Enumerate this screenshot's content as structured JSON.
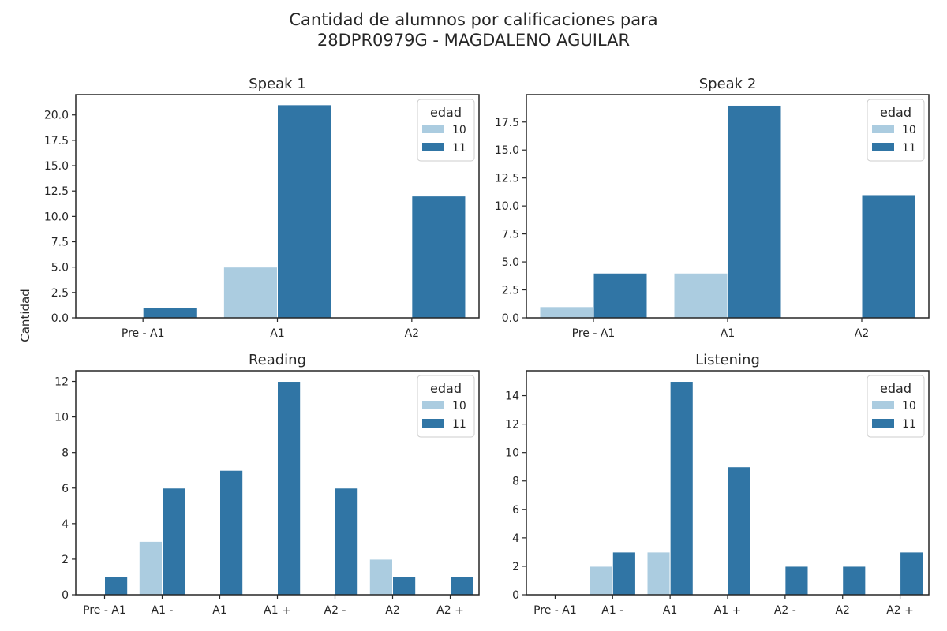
{
  "title": "Cantidad de alumnos por calificaciones para\n28DPR0979G - MAGDALENO AGUILAR",
  "title_lines": [
    "Cantidad de alumnos por calificaciones para",
    "28DPR0979G - MAGDALENO AGUILAR"
  ],
  "ylabel": "Cantidad",
  "colors": {
    "10": "#abcce0",
    "11": "#3075a5",
    "axis": "#262626",
    "background": "#ffffff"
  },
  "chart_data": [
    {
      "type": "bar",
      "title": "Speak 1",
      "categories": [
        "Pre - A1",
        "A1",
        "A2"
      ],
      "series": [
        {
          "name": "10",
          "values": [
            0,
            5,
            0
          ]
        },
        {
          "name": "11",
          "values": [
            1,
            21,
            12
          ]
        }
      ],
      "ylim": [
        0,
        22
      ],
      "yticks": [
        0.0,
        2.5,
        5.0,
        7.5,
        10.0,
        12.5,
        15.0,
        17.5,
        20.0
      ],
      "ytick_decimals": 1,
      "legend": {
        "title": "edad",
        "placement": "top-right"
      },
      "grid": false
    },
    {
      "type": "bar",
      "title": "Speak 2",
      "categories": [
        "Pre - A1",
        "A1",
        "A2"
      ],
      "series": [
        {
          "name": "10",
          "values": [
            1,
            4,
            0
          ]
        },
        {
          "name": "11",
          "values": [
            4,
            19,
            11
          ]
        }
      ],
      "ylim": [
        0,
        19.95
      ],
      "yticks": [
        0.0,
        2.5,
        5.0,
        7.5,
        10.0,
        12.5,
        15.0,
        17.5
      ],
      "ytick_decimals": 1,
      "legend": {
        "title": "edad",
        "placement": "top-right"
      },
      "grid": false
    },
    {
      "type": "bar",
      "title": "Reading",
      "categories": [
        "Pre - A1",
        "A1 -",
        "A1",
        "A1 +",
        "A2 -",
        "A2",
        "A2 +"
      ],
      "series": [
        {
          "name": "10",
          "values": [
            0,
            3,
            0,
            0,
            0,
            2,
            0
          ]
        },
        {
          "name": "11",
          "values": [
            1,
            6,
            7,
            12,
            6,
            1,
            1
          ]
        }
      ],
      "ylim": [
        0,
        12.6
      ],
      "yticks": [
        0,
        2,
        4,
        6,
        8,
        10,
        12
      ],
      "ytick_decimals": 0,
      "legend": {
        "title": "edad",
        "placement": "top-right"
      },
      "grid": false
    },
    {
      "type": "bar",
      "title": "Listening",
      "categories": [
        "Pre - A1",
        "A1 -",
        "A1",
        "A1 +",
        "A2 -",
        "A2",
        "A2 +"
      ],
      "series": [
        {
          "name": "10",
          "values": [
            0,
            2,
            3,
            0,
            0,
            0,
            0
          ]
        },
        {
          "name": "11",
          "values": [
            0,
            3,
            15,
            9,
            2,
            2,
            3
          ]
        }
      ],
      "ylim": [
        0,
        15.75
      ],
      "yticks": [
        0,
        2,
        4,
        6,
        8,
        10,
        12,
        14
      ],
      "ytick_decimals": 0,
      "legend": {
        "title": "edad",
        "placement": "top-right"
      },
      "grid": false
    }
  ]
}
